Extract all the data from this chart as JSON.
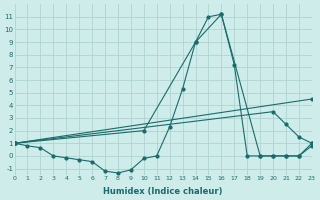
{
  "xlabel": "Humidex (Indice chaleur)",
  "background_color": "#ceecea",
  "grid_color": "#b0d4d2",
  "line_color": "#1a6b6b",
  "xlim": [
    0,
    23
  ],
  "ylim": [
    -1.5,
    12
  ],
  "yticks": [
    -1,
    0,
    1,
    2,
    3,
    4,
    5,
    6,
    7,
    8,
    9,
    10,
    11
  ],
  "xticks": [
    0,
    1,
    2,
    3,
    4,
    5,
    6,
    7,
    8,
    9,
    10,
    11,
    12,
    13,
    14,
    15,
    16,
    17,
    18,
    19,
    20,
    21,
    22,
    23
  ],
  "curve1_x": [
    0,
    1,
    2,
    3,
    4,
    5,
    6,
    7,
    8,
    9,
    10,
    11,
    12,
    13,
    14,
    15,
    16,
    17,
    18,
    19,
    20,
    21,
    22,
    23
  ],
  "curve1_y": [
    1,
    0.8,
    0.65,
    0.0,
    -0.15,
    -0.3,
    -0.45,
    -1.2,
    -1.35,
    -1.1,
    -0.2,
    0.0,
    2.3,
    5.3,
    9.0,
    11.0,
    11.2,
    7.2,
    0.0,
    0.0,
    0.0,
    0.0,
    0.0,
    1.0
  ],
  "curve2_x": [
    0,
    10,
    14,
    16,
    19,
    20,
    21,
    22,
    23
  ],
  "curve2_y": [
    1,
    2.0,
    9.0,
    11.2,
    0.0,
    0.0,
    0.0,
    0.0,
    0.8
  ],
  "curve3_x": [
    0,
    23
  ],
  "curve3_y": [
    1,
    4.5
  ],
  "curve4_x": [
    0,
    20,
    21,
    22,
    23
  ],
  "curve4_y": [
    1,
    3.5,
    2.5,
    1.5,
    1.0
  ]
}
